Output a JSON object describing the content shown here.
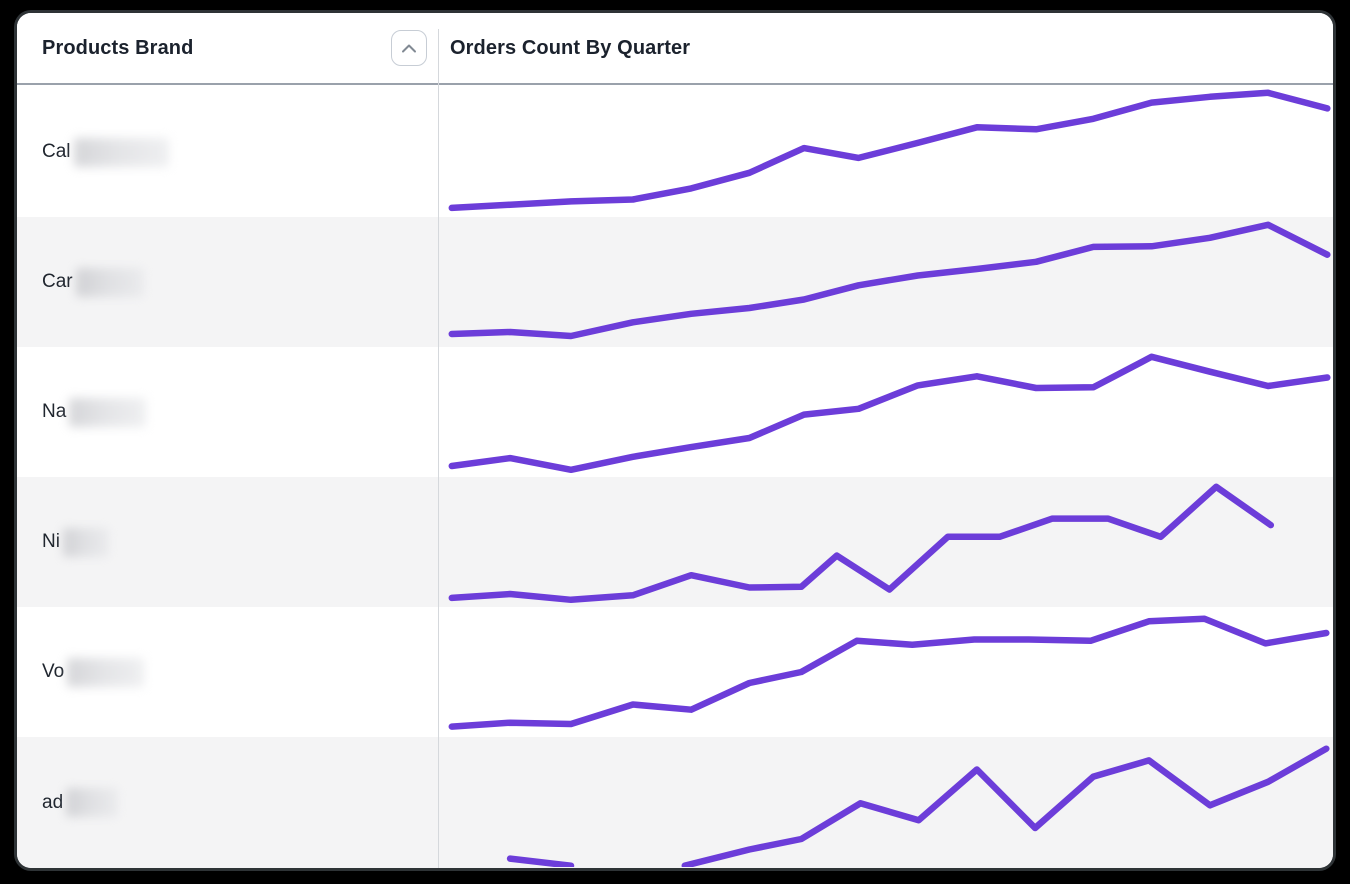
{
  "theme": {
    "accent": "#6C3DD9",
    "stripe_bg": "#f4f4f5",
    "row_bg": "#ffffff",
    "header_text": "#1b222d",
    "body_text": "#20262f",
    "header_border": "#9aa1ab",
    "column_divider": "#d5d8dc",
    "frame_bg": "#000000"
  },
  "header": {
    "col1": "Products Brand",
    "col2": "Orders Count By Quarter",
    "sort_icon": "chevron-up"
  },
  "table": {
    "rows": [
      {
        "brand_visible": "Cal",
        "brand_redacted": true,
        "redacted_width": 95,
        "sparkline": {
          "type": "line",
          "normalized": true,
          "segments": [
            [
              [
                0.013,
                0.93
              ],
              [
                0.077,
                0.905
              ],
              [
                0.144,
                0.88
              ],
              [
                0.212,
                0.865
              ],
              [
                0.276,
                0.78
              ],
              [
                0.34,
                0.66
              ],
              [
                0.4,
                0.47
              ],
              [
                0.46,
                0.545
              ],
              [
                0.525,
                0.43
              ],
              [
                0.59,
                0.31
              ],
              [
                0.655,
                0.325
              ],
              [
                0.718,
                0.245
              ],
              [
                0.782,
                0.12
              ],
              [
                0.846,
                0.075
              ],
              [
                0.91,
                0.045
              ],
              [
                0.975,
                0.165
              ]
            ]
          ]
        }
      },
      {
        "brand_visible": "Car",
        "brand_redacted": true,
        "redacted_width": 68,
        "sparkline": {
          "type": "line",
          "normalized": true,
          "segments": [
            [
              [
                0.013,
                0.9
              ],
              [
                0.077,
                0.885
              ],
              [
                0.144,
                0.915
              ],
              [
                0.212,
                0.81
              ],
              [
                0.276,
                0.745
              ],
              [
                0.34,
                0.7
              ],
              [
                0.4,
                0.635
              ],
              [
                0.46,
                0.525
              ],
              [
                0.525,
                0.45
              ],
              [
                0.59,
                0.4
              ],
              [
                0.655,
                0.345
              ],
              [
                0.718,
                0.23
              ],
              [
                0.782,
                0.225
              ],
              [
                0.846,
                0.16
              ],
              [
                0.91,
                0.06
              ],
              [
                0.975,
                0.29
              ]
            ]
          ]
        }
      },
      {
        "brand_visible": "Na",
        "brand_redacted": true,
        "redacted_width": 77,
        "sparkline": {
          "type": "line",
          "normalized": true,
          "segments": [
            [
              [
                0.013,
                0.915
              ],
              [
                0.077,
                0.855
              ],
              [
                0.144,
                0.945
              ],
              [
                0.212,
                0.845
              ],
              [
                0.276,
                0.77
              ],
              [
                0.34,
                0.7
              ],
              [
                0.4,
                0.52
              ],
              [
                0.46,
                0.475
              ],
              [
                0.525,
                0.295
              ],
              [
                0.59,
                0.225
              ],
              [
                0.655,
                0.315
              ],
              [
                0.718,
                0.31
              ],
              [
                0.782,
                0.075
              ],
              [
                0.846,
                0.19
              ],
              [
                0.91,
                0.3
              ],
              [
                0.975,
                0.235
              ]
            ]
          ]
        }
      },
      {
        "brand_visible": "Ni",
        "brand_redacted": true,
        "redacted_width": 46,
        "sparkline": {
          "type": "line",
          "normalized": true,
          "segments": [
            [
              [
                0.013,
                0.93
              ],
              [
                0.077,
                0.9
              ],
              [
                0.144,
                0.945
              ],
              [
                0.212,
                0.91
              ],
              [
                0.276,
                0.755
              ],
              [
                0.34,
                0.85
              ],
              [
                0.397,
                0.845
              ],
              [
                0.436,
                0.605
              ],
              [
                0.494,
                0.865
              ],
              [
                0.558,
                0.46
              ],
              [
                0.615,
                0.46
              ],
              [
                0.673,
                0.32
              ],
              [
                0.734,
                0.32
              ],
              [
                0.792,
                0.46
              ],
              [
                0.853,
                0.075
              ],
              [
                0.913,
                0.37
              ]
            ]
          ]
        }
      },
      {
        "brand_visible": "Vo",
        "brand_redacted": true,
        "redacted_width": 77,
        "sparkline": {
          "type": "line",
          "normalized": true,
          "segments": [
            [
              [
                0.013,
                0.92
              ],
              [
                0.077,
                0.89
              ],
              [
                0.144,
                0.9
              ],
              [
                0.212,
                0.75
              ],
              [
                0.276,
                0.79
              ],
              [
                0.34,
                0.585
              ],
              [
                0.397,
                0.5
              ],
              [
                0.458,
                0.26
              ],
              [
                0.519,
                0.29
              ],
              [
                0.587,
                0.25
              ],
              [
                0.647,
                0.25
              ],
              [
                0.715,
                0.26
              ],
              [
                0.779,
                0.11
              ],
              [
                0.84,
                0.09
              ],
              [
                0.907,
                0.28
              ],
              [
                0.974,
                0.2
              ]
            ]
          ]
        }
      },
      {
        "brand_visible": "ad",
        "brand_redacted": true,
        "redacted_width": 52,
        "sparkline": {
          "type": "line",
          "normalized": true,
          "segments": [
            [
              [
                0.077,
                0.935
              ],
              [
                0.144,
                0.99
              ]
            ],
            [
              [
                0.269,
                0.99
              ],
              [
                0.34,
                0.865
              ],
              [
                0.397,
                0.785
              ],
              [
                0.462,
                0.51
              ],
              [
                0.526,
                0.64
              ],
              [
                0.59,
                0.25
              ],
              [
                0.654,
                0.7
              ],
              [
                0.718,
                0.305
              ],
              [
                0.779,
                0.18
              ],
              [
                0.846,
                0.525
              ],
              [
                0.91,
                0.345
              ],
              [
                0.974,
                0.09
              ]
            ]
          ]
        }
      }
    ]
  }
}
